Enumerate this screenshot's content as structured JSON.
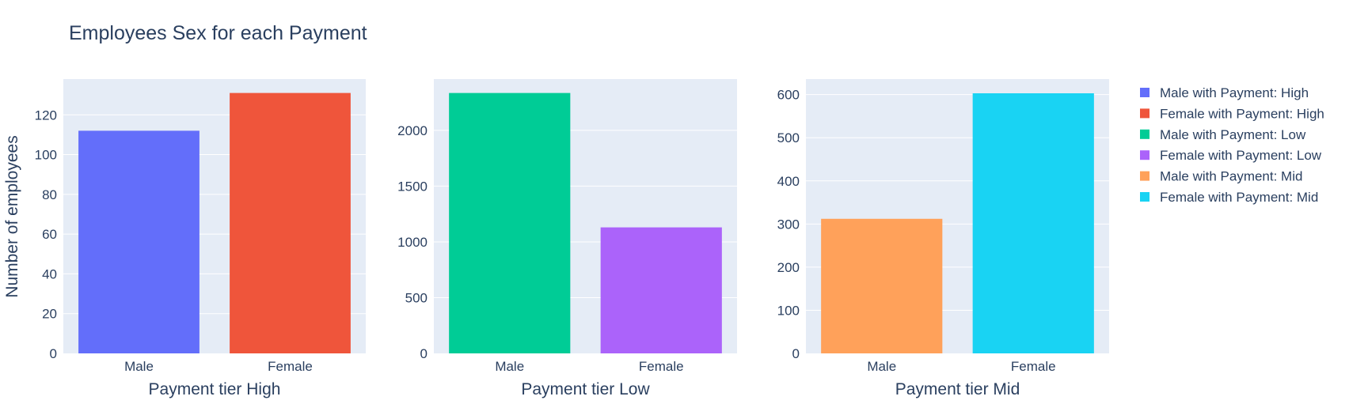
{
  "chart_data": {
    "type": "bar",
    "title": "Employees Sex for each Payment",
    "ylabel": "Number of employees",
    "categories": [
      "Male",
      "Female"
    ],
    "subplots": [
      {
        "xlabel": "Payment tier High",
        "ylim": [
          0,
          138
        ],
        "yticks": [
          0,
          20,
          40,
          60,
          80,
          100,
          120
        ],
        "series": [
          {
            "name": "Male with Payment: High",
            "category": "Male",
            "value": 112,
            "color": "#636efa"
          },
          {
            "name": "Female with Payment: High",
            "category": "Female",
            "value": 131,
            "color": "#ef553b"
          }
        ]
      },
      {
        "xlabel": "Payment tier Low",
        "ylim": [
          0,
          2460
        ],
        "yticks": [
          0,
          500,
          1000,
          1500,
          2000
        ],
        "series": [
          {
            "name": "Male with Payment: Low",
            "category": "Male",
            "value": 2335,
            "color": "#00cc96"
          },
          {
            "name": "Female with Payment: Low",
            "category": "Female",
            "value": 1130,
            "color": "#ab63fa"
          }
        ]
      },
      {
        "xlabel": "Payment tier Mid",
        "ylim": [
          0,
          636
        ],
        "yticks": [
          0,
          100,
          200,
          300,
          400,
          500,
          600
        ],
        "series": [
          {
            "name": "Male with Payment: Mid",
            "category": "Male",
            "value": 312,
            "color": "#ffa15a"
          },
          {
            "name": "Female with Payment: Mid",
            "category": "Female",
            "value": 603,
            "color": "#19d3f3"
          }
        ]
      }
    ],
    "legend_position": "top-right",
    "grid": true
  }
}
